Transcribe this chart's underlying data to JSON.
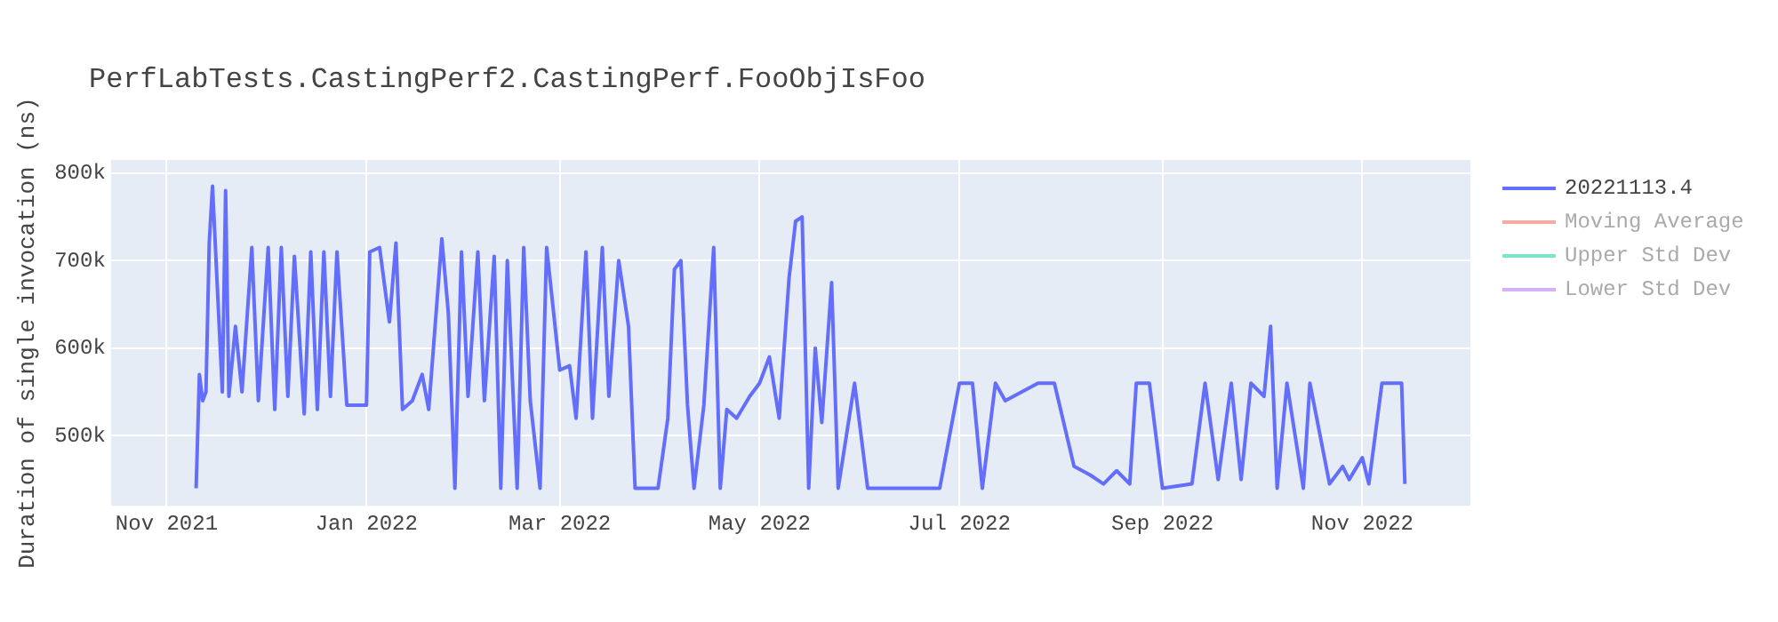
{
  "chart_data": {
    "type": "line",
    "title": "PerfLabTests.CastingPerf2.CastingPerf.FooObjIsFoo",
    "ylabel": "Duration of single invocation (ns)",
    "xlim": [
      "2021-10-15",
      "2022-12-04"
    ],
    "xticks": [
      {
        "value": "2021-11-01",
        "label": "Nov 2021"
      },
      {
        "value": "2022-01-01",
        "label": "Jan 2022"
      },
      {
        "value": "2022-03-01",
        "label": "Mar 2022"
      },
      {
        "value": "2022-05-01",
        "label": "May 2022"
      },
      {
        "value": "2022-07-01",
        "label": "Jul 2022"
      },
      {
        "value": "2022-09-01",
        "label": "Sep 2022"
      },
      {
        "value": "2022-11-01",
        "label": "Nov 2022"
      }
    ],
    "ylim": [
      420000,
      815000
    ],
    "yticks": [
      {
        "value": 500000,
        "label": "500k"
      },
      {
        "value": 600000,
        "label": "600k"
      },
      {
        "value": 700000,
        "label": "700k"
      },
      {
        "value": 800000,
        "label": "800k"
      }
    ],
    "grid": true,
    "legend": "right",
    "marker": "none",
    "line_style": "solid",
    "series": [
      {
        "name": "20221113.4",
        "color": "#636efa",
        "x": [
          "2021-11-10",
          "2021-11-11",
          "2021-11-12",
          "2021-11-13",
          "2021-11-14",
          "2021-11-15",
          "2021-11-18",
          "2021-11-19",
          "2021-11-20",
          "2021-11-22",
          "2021-11-24",
          "2021-11-27",
          "2021-11-29",
          "2021-12-02",
          "2021-12-04",
          "2021-12-06",
          "2021-12-08",
          "2021-12-10",
          "2021-12-13",
          "2021-12-15",
          "2021-12-17",
          "2021-12-19",
          "2021-12-21",
          "2021-12-23",
          "2021-12-26",
          "2022-01-01",
          "2022-01-02",
          "2022-01-05",
          "2022-01-08",
          "2022-01-10",
          "2022-01-12",
          "2022-01-15",
          "2022-01-18",
          "2022-01-20",
          "2022-01-24",
          "2022-01-26",
          "2022-01-28",
          "2022-01-30",
          "2022-02-01",
          "2022-02-04",
          "2022-02-06",
          "2022-02-09",
          "2022-02-11",
          "2022-02-13",
          "2022-02-16",
          "2022-02-18",
          "2022-02-20",
          "2022-02-23",
          "2022-02-25",
          "2022-03-01",
          "2022-03-04",
          "2022-03-06",
          "2022-03-09",
          "2022-03-11",
          "2022-03-14",
          "2022-03-16",
          "2022-03-19",
          "2022-03-22",
          "2022-03-24",
          "2022-03-31",
          "2022-04-03",
          "2022-04-05",
          "2022-04-07",
          "2022-04-09",
          "2022-04-11",
          "2022-04-14",
          "2022-04-17",
          "2022-04-19",
          "2022-04-21",
          "2022-04-24",
          "2022-04-28",
          "2022-05-01",
          "2022-05-04",
          "2022-05-07",
          "2022-05-10",
          "2022-05-12",
          "2022-05-14",
          "2022-05-16",
          "2022-05-18",
          "2022-05-20",
          "2022-05-23",
          "2022-05-25",
          "2022-05-30",
          "2022-06-03",
          "2022-06-25",
          "2022-07-01",
          "2022-07-05",
          "2022-07-08",
          "2022-07-12",
          "2022-07-15",
          "2022-07-25",
          "2022-07-30",
          "2022-08-05",
          "2022-08-10",
          "2022-08-14",
          "2022-08-18",
          "2022-08-22",
          "2022-08-24",
          "2022-08-28",
          "2022-09-01",
          "2022-09-10",
          "2022-09-14",
          "2022-09-18",
          "2022-09-22",
          "2022-09-25",
          "2022-09-28",
          "2022-10-02",
          "2022-10-04",
          "2022-10-06",
          "2022-10-09",
          "2022-10-14",
          "2022-10-16",
          "2022-10-22",
          "2022-10-26",
          "2022-10-28",
          "2022-11-01",
          "2022-11-03",
          "2022-11-07",
          "2022-11-13",
          "2022-11-14"
        ],
        "values": [
          440000,
          570000,
          540000,
          550000,
          720000,
          785000,
          550000,
          780000,
          545000,
          625000,
          550000,
          715000,
          540000,
          715000,
          530000,
          715000,
          545000,
          705000,
          525000,
          710000,
          530000,
          710000,
          545000,
          710000,
          535000,
          535000,
          710000,
          715000,
          630000,
          720000,
          530000,
          540000,
          570000,
          530000,
          725000,
          640000,
          440000,
          710000,
          545000,
          710000,
          540000,
          705000,
          440000,
          700000,
          440000,
          715000,
          540000,
          440000,
          715000,
          575000,
          580000,
          520000,
          710000,
          520000,
          715000,
          545000,
          700000,
          625000,
          440000,
          440000,
          520000,
          690000,
          700000,
          535000,
          440000,
          535000,
          715000,
          440000,
          530000,
          520000,
          545000,
          560000,
          590000,
          520000,
          680000,
          745000,
          750000,
          440000,
          600000,
          515000,
          675000,
          440000,
          560000,
          440000,
          440000,
          560000,
          560000,
          440000,
          560000,
          540000,
          560000,
          560000,
          465000,
          455000,
          445000,
          460000,
          445000,
          560000,
          560000,
          440000,
          445000,
          560000,
          450000,
          560000,
          450000,
          560000,
          545000,
          625000,
          440000,
          560000,
          440000,
          560000,
          445000,
          465000,
          450000,
          475000,
          445000,
          560000,
          560000,
          445000
        ]
      },
      {
        "name": "Moving Average",
        "color": "#ef553b"
      },
      {
        "name": "Upper Std Dev",
        "color": "#00cc96"
      },
      {
        "name": "Lower Std Dev",
        "color": "#ab63fa"
      }
    ]
  }
}
